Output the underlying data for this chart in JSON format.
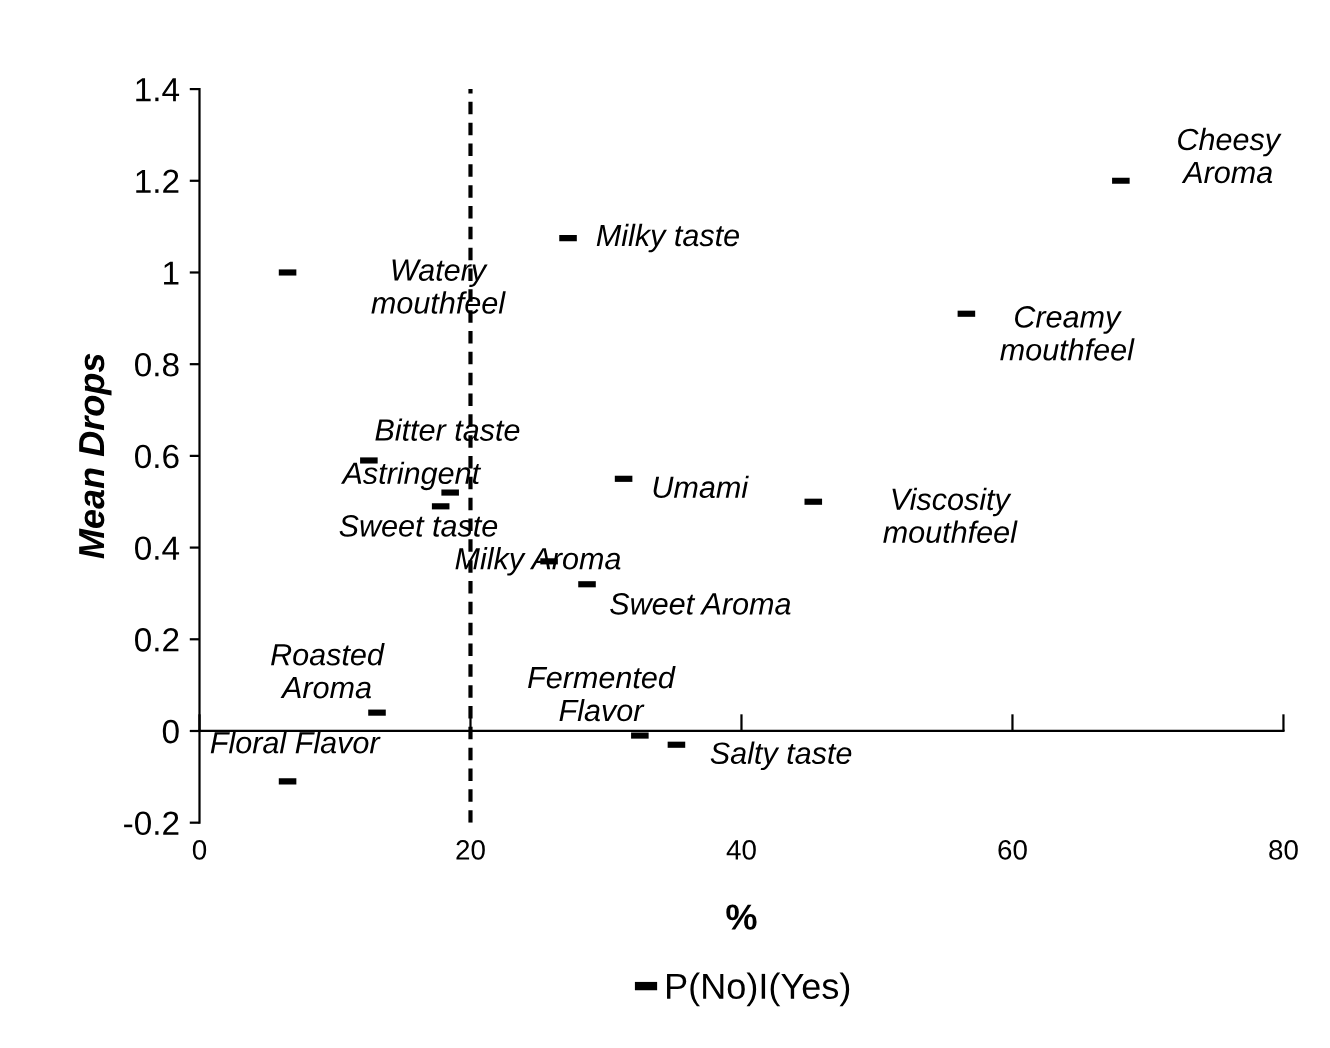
{
  "chart_data": {
    "type": "scatter",
    "xlabel": "%",
    "ylabel": "Mean Drops",
    "series": [
      {
        "name": "P(No)I(Yes)",
        "color": "#000000",
        "x": [
          68.0,
          56.6,
          27.2,
          6.5,
          12.5,
          18.5,
          17.8,
          31.3,
          45.3,
          25.8,
          28.6,
          13.1,
          32.5,
          35.2,
          6.5
        ],
        "values": [
          1.2,
          0.91,
          1.075,
          1.0,
          0.59,
          0.52,
          0.49,
          0.55,
          0.5,
          0.37,
          0.32,
          0.04,
          -0.01,
          -0.03,
          -0.11
        ]
      }
    ],
    "annotations": [
      {
        "text": "Cheesy\nAroma",
        "x": 68.0,
        "y": 1.2
      },
      {
        "text": "Creamy\nmouthfeel",
        "x": 56.6,
        "y": 0.91
      },
      {
        "text": "Milky taste",
        "x": 27.2,
        "y": 1.075
      },
      {
        "text": "Watery\nmouthfeel",
        "x": 6.5,
        "y": 1.0
      },
      {
        "text": "Bitter taste",
        "x": 12.5,
        "y": 0.59
      },
      {
        "text": "Astringent",
        "x": 18.5,
        "y": 0.52
      },
      {
        "text": "Sweet taste",
        "x": 17.8,
        "y": 0.49
      },
      {
        "text": "Umami",
        "x": 31.3,
        "y": 0.55
      },
      {
        "text": "Viscosity\nmouthfeel",
        "x": 45.3,
        "y": 0.5
      },
      {
        "text": "Milky Aroma",
        "x": 25.8,
        "y": 0.37
      },
      {
        "text": "Sweet Aroma",
        "x": 28.6,
        "y": 0.32
      },
      {
        "text": "Roasted\nAroma",
        "x": 13.1,
        "y": 0.04
      },
      {
        "text": "Fermented\nFlavor",
        "x": 32.5,
        "y": -0.01
      },
      {
        "text": "Salty taste",
        "x": 35.2,
        "y": -0.03
      },
      {
        "text": "Floral Flavor",
        "x": 6.5,
        "y": -0.11
      }
    ],
    "xlim": [
      0,
      80
    ],
    "xticks": [
      0,
      20,
      40,
      60,
      80
    ],
    "ylim": [
      -0.2,
      1.4
    ],
    "yticks": [
      {
        "value": -0.2,
        "label": "-0.2"
      },
      0,
      {
        "value": 0.2,
        "label": "0.2"
      },
      {
        "value": 0.4,
        "label": "0.4"
      },
      {
        "value": 0.6,
        "label": "0.6"
      },
      {
        "value": 0.8,
        "label": "0.8"
      },
      1,
      {
        "value": 1.2,
        "label": "1.2"
      },
      {
        "value": 1.4,
        "label": "1.4"
      }
    ],
    "ref_lines": [
      {
        "axis": "x",
        "value": 20,
        "color": "#000000",
        "line_style": "dashed"
      }
    ],
    "grid": false,
    "legend": "bottom"
  }
}
